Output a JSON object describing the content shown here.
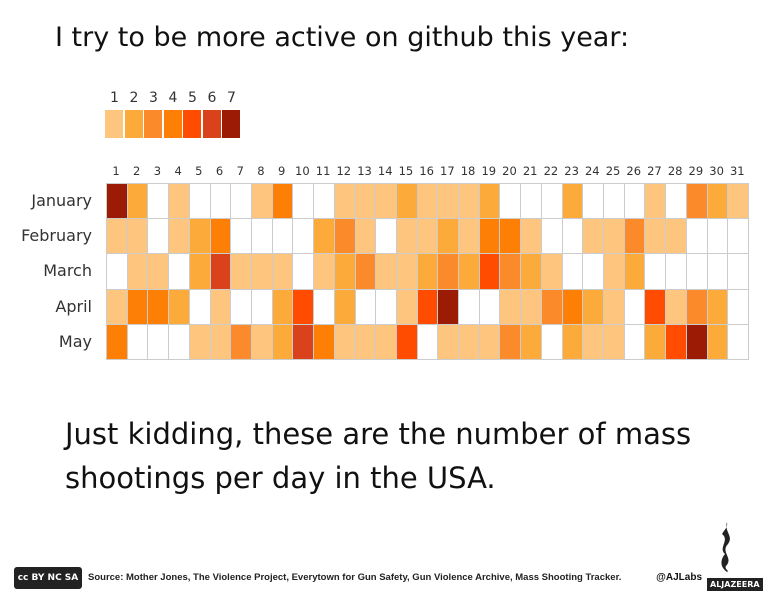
{
  "title": "I try to be more active on github this year:",
  "subtitle": "Just kidding, these are the number of mass shootings per day in the USA.",
  "footer": {
    "source": "Source: Mother Jones, The Violence Project, Everytown for Gun Safety, Gun Violence Archive, Mass Shooting Tracker.",
    "handle": "@AJLabs",
    "brand": "ALJAZEERA",
    "license": "cc BY NC SA"
  },
  "chart_data": {
    "type": "heatmap",
    "title": "I try to be more active on github this year:",
    "legend": {
      "levels": [
        "1",
        "2",
        "3",
        "4",
        "5",
        "6",
        "7"
      ],
      "colors": [
        "#fec57e",
        "#fcaa3a",
        "#fb8a2a",
        "#fd7f05",
        "#ff4c00",
        "#d9421a",
        "#9b1b04"
      ],
      "placement": "top-left"
    },
    "x": [
      "1",
      "2",
      "3",
      "4",
      "5",
      "6",
      "7",
      "8",
      "9",
      "10",
      "11",
      "12",
      "13",
      "14",
      "15",
      "16",
      "17",
      "18",
      "19",
      "20",
      "21",
      "22",
      "23",
      "24",
      "25",
      "26",
      "27",
      "28",
      "29",
      "30",
      "31"
    ],
    "y": [
      "January",
      "February",
      "March",
      "April",
      "May"
    ],
    "values": [
      [
        7,
        2,
        0,
        1,
        0,
        0,
        0,
        1,
        4,
        0,
        0,
        1,
        1,
        1,
        2,
        1,
        1,
        1,
        2,
        0,
        0,
        0,
        2,
        0,
        0,
        0,
        1,
        0,
        3,
        2,
        1
      ],
      [
        1,
        1,
        0,
        1,
        2,
        4,
        0,
        0,
        0,
        0,
        2,
        3,
        1,
        0,
        1,
        1,
        2,
        1,
        4,
        4,
        1,
        0,
        0,
        1,
        1,
        3,
        1,
        1,
        0,
        0,
        0
      ],
      [
        0,
        1,
        1,
        0,
        2,
        6,
        1,
        1,
        1,
        0,
        1,
        2,
        3,
        1,
        1,
        2,
        3,
        2,
        5,
        3,
        2,
        1,
        0,
        0,
        1,
        2,
        0,
        0,
        0,
        0,
        0
      ],
      [
        1,
        4,
        4,
        2,
        0,
        1,
        0,
        0,
        2,
        5,
        0,
        2,
        0,
        0,
        1,
        5,
        7,
        0,
        0,
        1,
        1,
        3,
        4,
        2,
        1,
        0,
        5,
        1,
        3,
        2,
        0
      ],
      [
        4,
        0,
        0,
        0,
        1,
        1,
        3,
        1,
        2,
        6,
        4,
        1,
        1,
        1,
        5,
        0,
        1,
        1,
        1,
        3,
        2,
        0,
        2,
        1,
        1,
        0,
        2,
        5,
        7,
        2,
        0
      ]
    ]
  }
}
